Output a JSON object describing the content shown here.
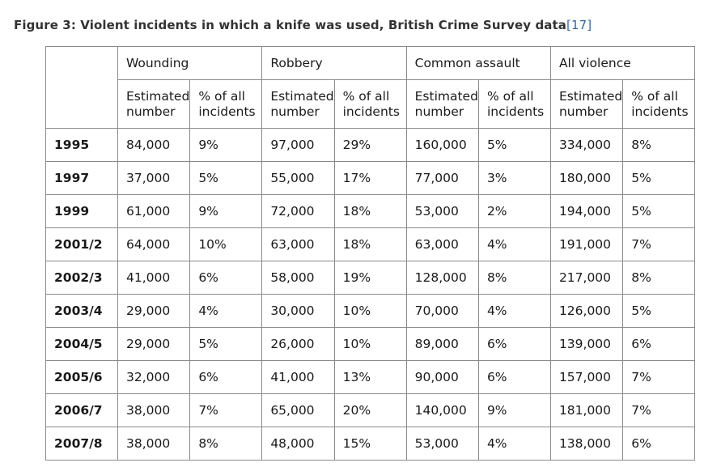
{
  "caption": {
    "text": "Figure 3: Violent incidents in which a knife was used, British Crime Survey data",
    "ref": "[17]"
  },
  "table": {
    "groups": [
      "Wounding",
      "Robbery",
      "Common assault",
      "All violence"
    ],
    "subheaders": {
      "estimated": "Estimated number",
      "percent": "% of all incidents"
    },
    "rows": [
      {
        "year": "1995",
        "cells": [
          "84,000",
          "9%",
          "97,000",
          "29%",
          "160,000",
          "5%",
          "334,000",
          "8%"
        ]
      },
      {
        "year": "1997",
        "cells": [
          "37,000",
          "5%",
          "55,000",
          "17%",
          "77,000",
          "3%",
          "180,000",
          "5%"
        ]
      },
      {
        "year": "1999",
        "cells": [
          "61,000",
          "9%",
          "72,000",
          "18%",
          "53,000",
          "2%",
          "194,000",
          "5%"
        ]
      },
      {
        "year": "2001/2",
        "cells": [
          "64,000",
          "10%",
          "63,000",
          "18%",
          "63,000",
          "4%",
          "191,000",
          "7%"
        ]
      },
      {
        "year": "2002/3",
        "cells": [
          "41,000",
          "6%",
          "58,000",
          "19%",
          "128,000",
          "8%",
          "217,000",
          "8%"
        ]
      },
      {
        "year": "2003/4",
        "cells": [
          "29,000",
          "4%",
          "30,000",
          "10%",
          "70,000",
          "4%",
          "126,000",
          "5%"
        ]
      },
      {
        "year": "2004/5",
        "cells": [
          "29,000",
          "5%",
          "26,000",
          "10%",
          "89,000",
          "6%",
          "139,000",
          "6%"
        ]
      },
      {
        "year": "2005/6",
        "cells": [
          "32,000",
          "6%",
          "41,000",
          "13%",
          "90,000",
          "6%",
          "157,000",
          "7%"
        ]
      },
      {
        "year": "2006/7",
        "cells": [
          "38,000",
          "7%",
          "65,000",
          "20%",
          "140,000",
          "9%",
          "181,000",
          "7%"
        ]
      },
      {
        "year": "2007/8",
        "cells": [
          "38,000",
          "8%",
          "48,000",
          "15%",
          "53,000",
          "4%",
          "138,000",
          "6%"
        ]
      }
    ]
  },
  "colors": {
    "corner_header_background": "#dcdcdc",
    "border": "#8a8a8a",
    "reference_link": "#3366aa",
    "caption_text": "#333333"
  }
}
